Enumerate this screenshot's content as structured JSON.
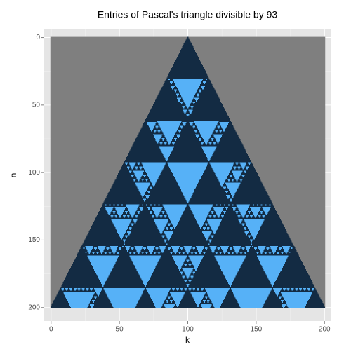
{
  "chart_data": {
    "type": "pascal-raster",
    "title": "Entries of Pascal's triangle divisible by 93",
    "x_label": "k",
    "y_label": "n",
    "divisor": 93,
    "n_max": 200,
    "xlim": [
      -5,
      205
    ],
    "ylim": [
      -6,
      210
    ],
    "xticks": [
      0,
      50,
      100,
      150,
      200
    ],
    "yticks": [
      0,
      50,
      100,
      150,
      200
    ],
    "grid": true,
    "colors": {
      "divisible": "#56b1f7",
      "not_divisible": "#132b43",
      "outside": "#7f7f7f",
      "panel": "#e5e5e5",
      "grid": "#ffffff"
    }
  }
}
